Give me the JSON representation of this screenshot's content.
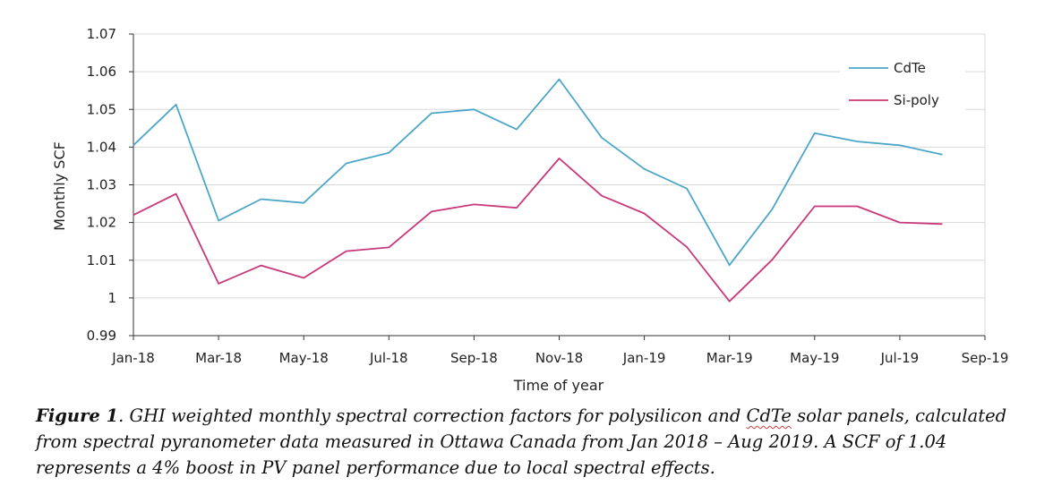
{
  "chart_data": {
    "type": "line",
    "title": "",
    "xlabel": "Time of year",
    "ylabel": "Monthly SCF",
    "ylim": [
      0.99,
      1.07
    ],
    "yticks": [
      "0.99",
      "1",
      "1.01",
      "1.02",
      "1.03",
      "1.04",
      "1.05",
      "1.06",
      "1.07"
    ],
    "ytick_values": [
      0.99,
      1.0,
      1.01,
      1.02,
      1.03,
      1.04,
      1.05,
      1.06,
      1.07
    ],
    "xtick_labels": [
      "Jan-18",
      "Mar-18",
      "May-18",
      "Jul-18",
      "Sep-18",
      "Nov-18",
      "Jan-19",
      "Mar-19",
      "May-19",
      "Jul-19",
      "Sep-19"
    ],
    "x_month_count": 21,
    "legend_position": "top-right",
    "series": [
      {
        "name": "CdTe",
        "color": "#4ba6c8",
        "x": [
          0,
          1,
          2,
          3,
          4,
          5,
          6,
          7,
          8,
          9,
          10,
          11,
          12,
          13,
          14,
          15,
          16,
          17,
          18,
          19
        ],
        "values": [
          1.0405,
          1.0513,
          1.0205,
          1.0262,
          1.0252,
          1.0357,
          1.0385,
          1.049,
          1.05,
          1.0447,
          1.058,
          1.0425,
          1.0342,
          1.029,
          1.0087,
          1.0235,
          1.0437,
          1.0415,
          1.0405,
          1.038
        ]
      },
      {
        "name": "Si-poly",
        "color": "#c8387a",
        "x": [
          0,
          1,
          2,
          3,
          4,
          5,
          6,
          7,
          8,
          9,
          10,
          11,
          12,
          13,
          14,
          15,
          16,
          17,
          18,
          19
        ],
        "values": [
          1.022,
          1.0276,
          1.0038,
          1.0086,
          1.0053,
          1.0124,
          1.0134,
          1.0229,
          1.0248,
          1.0239,
          1.037,
          1.0271,
          1.0224,
          1.0135,
          0.9991,
          1.0101,
          1.0243,
          1.0243,
          1.02,
          1.0196
        ]
      }
    ]
  },
  "caption": {
    "label": "Figure 1",
    "text_1": ". GHI weighted monthly spectral correction factors for polysilicon and ",
    "cdte": "CdTe",
    "text_2": " solar panels, calculated from spectral pyranometer data measured in Ottawa Canada from Jan 2018 – Aug 2019. A SCF of 1.04 represents a 4% boost in PV panel performance due to local spectral effects."
  }
}
